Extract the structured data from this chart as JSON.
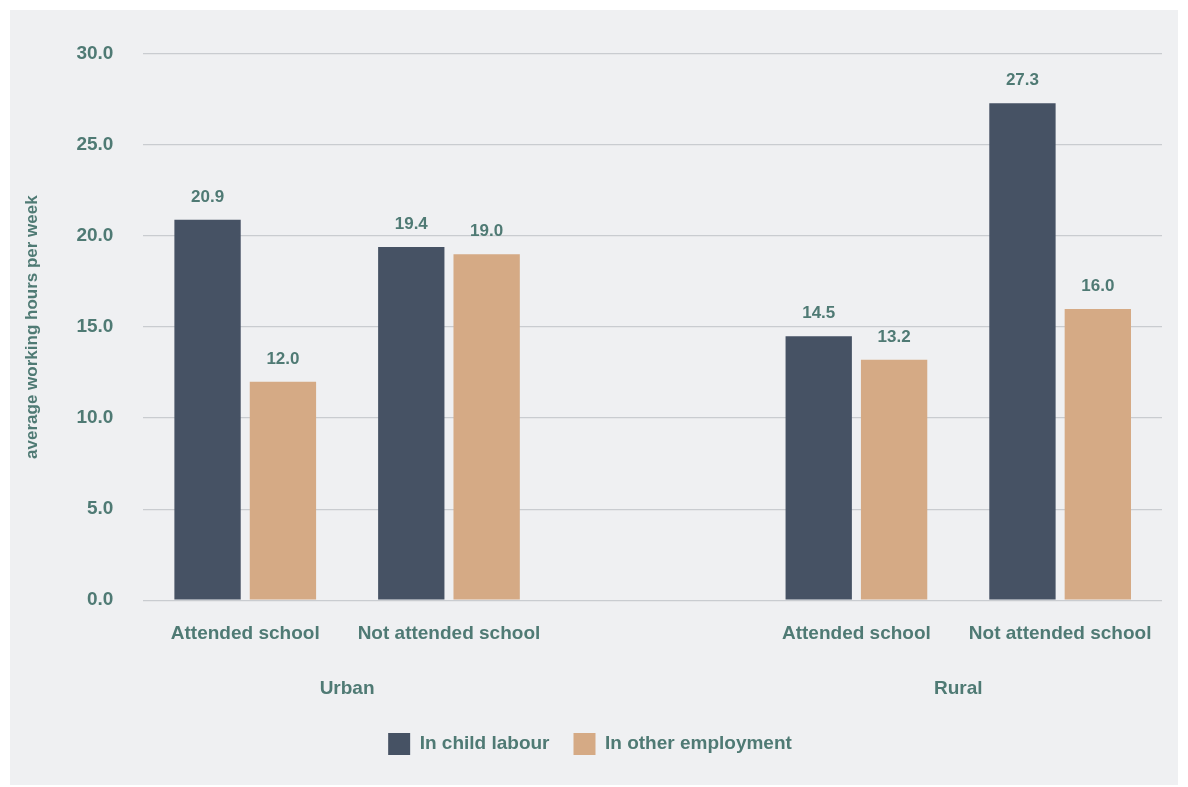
{
  "chart_data": {
    "type": "bar",
    "ylabel": "average working hours per week",
    "categories": [
      "Attended school",
      "Not attended school",
      null,
      "Attended school",
      "Not attended school"
    ],
    "series": [
      {
        "name": "In child labour",
        "color": "#465264",
        "values": [
          20.9,
          19.4,
          null,
          14.5,
          27.3
        ],
        "value_labels": [
          "20.9",
          "19.4",
          null,
          "14.5",
          "27.3"
        ]
      },
      {
        "name": "In other employment",
        "color": "#d5aa85",
        "values": [
          12.0,
          19.0,
          null,
          13.2,
          16.0
        ],
        "value_labels": [
          "12.0",
          "19.0",
          null,
          "13.2",
          "16.0"
        ]
      }
    ],
    "annotations": [
      "Urban",
      "Rural"
    ],
    "ylim": [
      0,
      30
    ],
    "yticks": [
      {
        "value": 0,
        "label": "0.0"
      },
      {
        "value": 5,
        "label": "5.0"
      },
      {
        "value": 10,
        "label": "10.0"
      },
      {
        "value": 15,
        "label": "15.0"
      },
      {
        "value": 20,
        "label": "20.0"
      },
      {
        "value": 25,
        "label": "25.0"
      },
      {
        "value": 30,
        "label": "30.0"
      }
    ],
    "grid": "y",
    "legend": "bottom"
  }
}
